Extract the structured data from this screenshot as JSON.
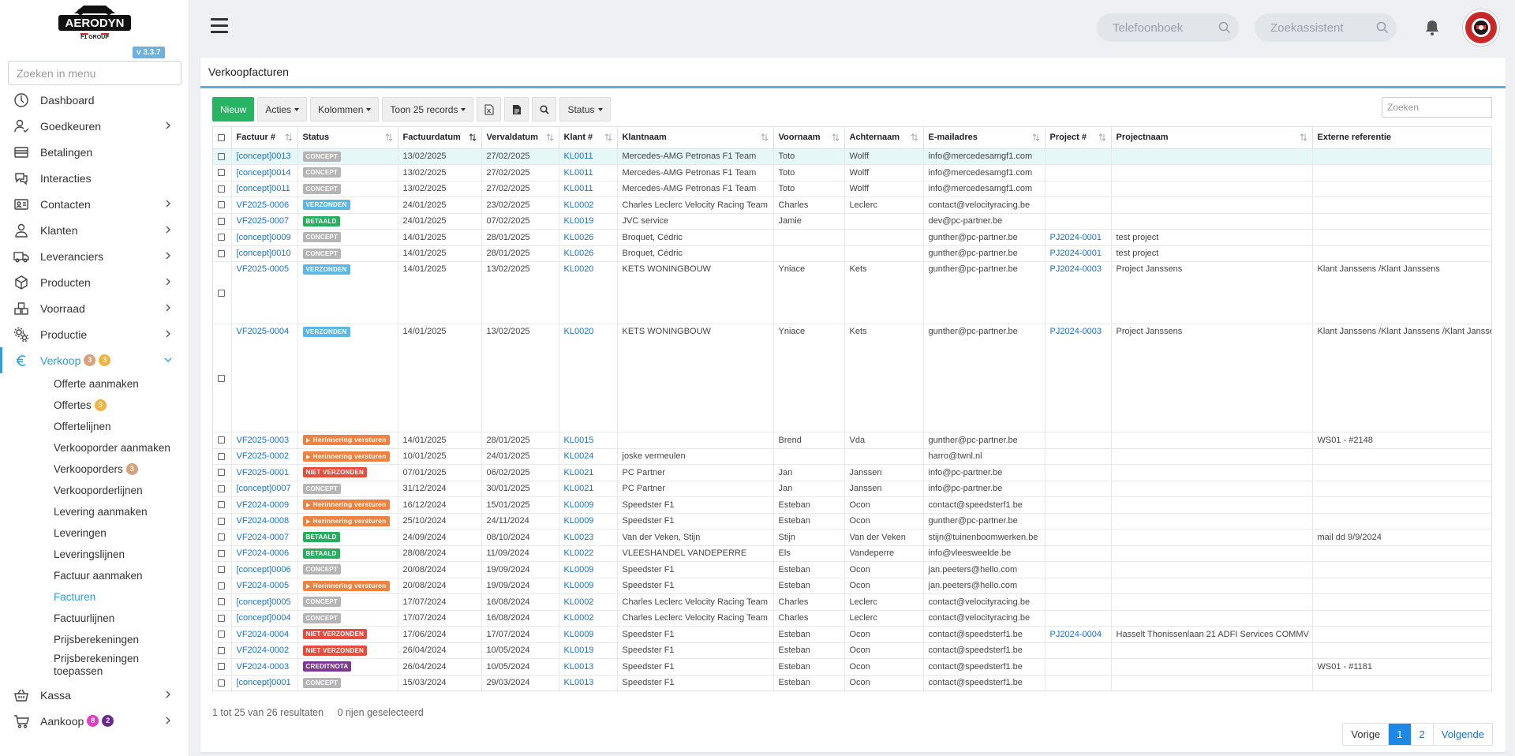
{
  "app": {
    "logo_text": "AERODYN",
    "logo_sub": "F1 GROUP",
    "version": "v 3.3.7"
  },
  "sidebar": {
    "search_placeholder": "Zoeken in menu",
    "items": [
      {
        "label": "Dashboard",
        "icon": "dashboard-icon",
        "has_chevron": false
      },
      {
        "label": "Goedkeuren",
        "icon": "user-check-icon",
        "has_chevron": true
      },
      {
        "label": "Betalingen",
        "icon": "credit-card-icon",
        "has_chevron": false
      },
      {
        "label": "Interacties",
        "icon": "chat-icon",
        "has_chevron": false
      },
      {
        "label": "Contacten",
        "icon": "contact-card-icon",
        "has_chevron": true
      },
      {
        "label": "Klanten",
        "icon": "person-icon",
        "has_chevron": true
      },
      {
        "label": "Leveranciers",
        "icon": "truck-icon",
        "has_chevron": true
      },
      {
        "label": "Producten",
        "icon": "box-icon",
        "has_chevron": true
      },
      {
        "label": "Voorraad",
        "icon": "boxes-icon",
        "has_chevron": true
      },
      {
        "label": "Productie",
        "icon": "gears-icon",
        "has_chevron": true
      }
    ],
    "verkoop": {
      "label": "Verkoop",
      "icon": "euro-icon",
      "badge1": "3",
      "badge2": "3",
      "subitems": [
        {
          "label": "Offerte aanmaken"
        },
        {
          "label": "Offertes",
          "badge": "3"
        },
        {
          "label": "Offertelijnen"
        },
        {
          "label": "Verkooporder aanmaken"
        },
        {
          "label": "Verkooporders",
          "badge": "3"
        },
        {
          "label": "Verkooporderlijnen"
        },
        {
          "label": "Levering aanmaken"
        },
        {
          "label": "Leveringen"
        },
        {
          "label": "Leveringslijnen"
        },
        {
          "label": "Factuur aanmaken"
        },
        {
          "label": "Facturen"
        },
        {
          "label": "Factuurlijnen"
        },
        {
          "label": "Prijsberekeningen"
        },
        {
          "label": "Prijsberekeningen toepassen"
        }
      ]
    },
    "kassa": {
      "label": "Kassa",
      "icon": "basket-icon"
    },
    "aankoop": {
      "label": "Aankoop",
      "icon": "cart-icon",
      "badge1": "8",
      "badge2": "2"
    }
  },
  "header": {
    "phonebook_placeholder": "Telefoonboek",
    "assistant_placeholder": "Zoekassistent"
  },
  "page": {
    "title": "Verkoopfacturen",
    "toolbar": {
      "new": "Nieuw",
      "actions": "Acties",
      "columns": "Kolommen",
      "show": "Toon 25 records",
      "status": "Status"
    },
    "search_placeholder": "Zoeken",
    "columns": [
      "Factuur #",
      "Status",
      "Factuurdatum",
      "Vervaldatum",
      "Klant #",
      "Klantnaam",
      "Voornaam",
      "Achternaam",
      "E-mailadres",
      "Project #",
      "Projectnaam",
      "Externe referentie"
    ],
    "rows": [
      {
        "nr": "[concept]0013",
        "status": "CONCEPT",
        "st": "concept",
        "fdate": "13/02/2025",
        "vdate": "27/02/2025",
        "klant": "KL0011",
        "naam": "Mercedes-AMG Petronas F1 Team",
        "vn": "Toto",
        "an": "Wolff",
        "email": "info@mercedesamgf1.com",
        "proj": "",
        "projnaam": "",
        "ref": "",
        "hl": true
      },
      {
        "nr": "[concept]0014",
        "status": "CONCEPT",
        "st": "concept",
        "fdate": "13/02/2025",
        "vdate": "27/02/2025",
        "klant": "KL0011",
        "naam": "Mercedes-AMG Petronas F1 Team",
        "vn": "Toto",
        "an": "Wolff",
        "email": "info@mercedesamgf1.com",
        "proj": "",
        "projnaam": "",
        "ref": ""
      },
      {
        "nr": "[concept]0011",
        "status": "CONCEPT",
        "st": "concept",
        "fdate": "13/02/2025",
        "vdate": "27/02/2025",
        "klant": "KL0011",
        "naam": "Mercedes-AMG Petronas F1 Team",
        "vn": "Toto",
        "an": "Wolff",
        "email": "info@mercedesamgf1.com",
        "proj": "",
        "projnaam": "",
        "ref": ""
      },
      {
        "nr": "VF2025-0006",
        "status": "VERZONDEN",
        "st": "verzonden",
        "fdate": "24/01/2025",
        "vdate": "23/02/2025",
        "klant": "KL0002",
        "naam": "Charles Leclerc Velocity Racing Team",
        "vn": "Charles",
        "an": "Leclerc",
        "email": "contact@velocityracing.be",
        "proj": "",
        "projnaam": "",
        "ref": ""
      },
      {
        "nr": "VF2025-0007",
        "status": "BETAALD",
        "st": "betaald",
        "fdate": "24/01/2025",
        "vdate": "07/02/2025",
        "klant": "KL0019",
        "naam": "JVC service",
        "vn": "Jamie",
        "an": "",
        "email": "dev@pc-partner.be",
        "proj": "",
        "projnaam": "",
        "ref": ""
      },
      {
        "nr": "[concept]0009",
        "status": "CONCEPT",
        "st": "concept",
        "fdate": "14/01/2025",
        "vdate": "28/01/2025",
        "klant": "KL0026",
        "naam": "Broquet, Cédric",
        "vn": "",
        "an": "",
        "email": "gunther@pc-partner.be",
        "proj": "PJ2024-0001",
        "projnaam": "test project",
        "ref": ""
      },
      {
        "nr": "[concept]0010",
        "status": "CONCEPT",
        "st": "concept",
        "fdate": "14/01/2025",
        "vdate": "28/01/2025",
        "klant": "KL0026",
        "naam": "Broquet, Cédric",
        "vn": "",
        "an": "",
        "email": "gunther@pc-partner.be",
        "proj": "PJ2024-0001",
        "projnaam": "test project",
        "ref": ""
      },
      {
        "nr": "VF2025-0005",
        "status": "VERZONDEN",
        "st": "verzonden",
        "fdate": "14/01/2025",
        "vdate": "13/02/2025",
        "klant": "KL0020",
        "naam": "KETS WONINGBOUW",
        "vn": "Yniace",
        "an": "Kets",
        "email": "gunther@pc-partner.be",
        "proj": "PJ2024-0003",
        "projnaam": "Project Janssens",
        "ref": "Klant Janssens /Klant Janssens",
        "tall": 79
      },
      {
        "nr": "VF2025-0004",
        "status": "VERZONDEN",
        "st": "verzonden",
        "fdate": "14/01/2025",
        "vdate": "13/02/2025",
        "klant": "KL0020",
        "naam": "KETS WONINGBOUW",
        "vn": "Yniace",
        "an": "Kets",
        "email": "gunther@pc-partner.be",
        "proj": "PJ2024-0003",
        "projnaam": "Project Janssens",
        "ref": "Klant Janssens /Klant Janssens /Klant Janssens",
        "tall": 137
      },
      {
        "nr": "VF2025-0003",
        "status": "Herinnering versturen",
        "st": "herinnering",
        "fdate": "14/01/2025",
        "vdate": "28/01/2025",
        "klant": "KL0015",
        "naam": "",
        "vn": "Brend",
        "an": "Vda",
        "email": "gunther@pc-partner.be",
        "proj": "",
        "projnaam": "",
        "ref": "WS01 - #2148"
      },
      {
        "nr": "VF2025-0002",
        "status": "Herinnering versturen",
        "st": "herinnering",
        "fdate": "10/01/2025",
        "vdate": "24/01/2025",
        "klant": "KL0024",
        "naam": "joske vermeulen",
        "vn": "",
        "an": "",
        "email": "harro@twnl.nl",
        "proj": "",
        "projnaam": "",
        "ref": ""
      },
      {
        "nr": "VF2025-0001",
        "status": "NIET VERZONDEN",
        "st": "niet",
        "fdate": "07/01/2025",
        "vdate": "06/02/2025",
        "klant": "KL0021",
        "naam": "PC Partner",
        "vn": "Jan",
        "an": "Janssen",
        "email": "info@pc-partner.be",
        "proj": "",
        "projnaam": "",
        "ref": ""
      },
      {
        "nr": "[concept]0007",
        "status": "CONCEPT",
        "st": "concept",
        "fdate": "31/12/2024",
        "vdate": "30/01/2025",
        "klant": "KL0021",
        "naam": "PC Partner",
        "vn": "Jan",
        "an": "Janssen",
        "email": "info@pc-partner.be",
        "proj": "",
        "projnaam": "",
        "ref": ""
      },
      {
        "nr": "VF2024-0009",
        "status": "Herinnering versturen",
        "st": "herinnering",
        "fdate": "16/12/2024",
        "vdate": "15/01/2025",
        "klant": "KL0009",
        "naam": "Speedster F1",
        "vn": "Esteban",
        "an": "Ocon",
        "email": "contact@speedsterf1.be",
        "proj": "",
        "projnaam": "",
        "ref": ""
      },
      {
        "nr": "VF2024-0008",
        "status": "Herinnering versturen",
        "st": "herinnering",
        "fdate": "25/10/2024",
        "vdate": "24/11/2024",
        "klant": "KL0009",
        "naam": "Speedster F1",
        "vn": "Esteban",
        "an": "Ocon",
        "email": "gunther@pc-partner.be",
        "proj": "",
        "projnaam": "",
        "ref": ""
      },
      {
        "nr": "VF2024-0007",
        "status": "BETAALD",
        "st": "betaald",
        "fdate": "24/09/2024",
        "vdate": "08/10/2024",
        "klant": "KL0023",
        "naam": "Van der Veken, Stijn",
        "vn": "Stijn",
        "an": "Van der Veken",
        "email": "stijn@tuinenboomwerken.be",
        "proj": "",
        "projnaam": "",
        "ref": "mail dd 9/9/2024"
      },
      {
        "nr": "VF2024-0006",
        "status": "BETAALD",
        "st": "betaald",
        "fdate": "28/08/2024",
        "vdate": "11/09/2024",
        "klant": "KL0022",
        "naam": "VLEESHANDEL VANDEPERRE",
        "vn": "Els",
        "an": "Vandeperre",
        "email": "info@vleesweelde.be",
        "proj": "",
        "projnaam": "",
        "ref": ""
      },
      {
        "nr": "[concept]0006",
        "status": "CONCEPT",
        "st": "concept",
        "fdate": "20/08/2024",
        "vdate": "19/09/2024",
        "klant": "KL0009",
        "naam": "Speedster F1",
        "vn": "Esteban",
        "an": "Ocon",
        "email": "jan.peeters@hello.com",
        "proj": "",
        "projnaam": "",
        "ref": ""
      },
      {
        "nr": "VF2024-0005",
        "status": "Herinnering versturen",
        "st": "herinnering",
        "fdate": "20/08/2024",
        "vdate": "19/09/2024",
        "klant": "KL0009",
        "naam": "Speedster F1",
        "vn": "Esteban",
        "an": "Ocon",
        "email": "jan.peeters@hello.com",
        "proj": "",
        "projnaam": "",
        "ref": ""
      },
      {
        "nr": "[concept]0005",
        "status": "CONCEPT",
        "st": "concept",
        "fdate": "17/07/2024",
        "vdate": "16/08/2024",
        "klant": "KL0002",
        "naam": "Charles Leclerc Velocity Racing Team",
        "vn": "Charles",
        "an": "Leclerc",
        "email": "contact@velocityracing.be",
        "proj": "",
        "projnaam": "",
        "ref": ""
      },
      {
        "nr": "[concept]0004",
        "status": "CONCEPT",
        "st": "concept",
        "fdate": "17/07/2024",
        "vdate": "16/08/2024",
        "klant": "KL0002",
        "naam": "Charles Leclerc Velocity Racing Team",
        "vn": "Charles",
        "an": "Leclerc",
        "email": "contact@velocityracing.be",
        "proj": "",
        "projnaam": "",
        "ref": ""
      },
      {
        "nr": "VF2024-0004",
        "status": "NIET VERZONDEN",
        "st": "niet",
        "fdate": "17/06/2024",
        "vdate": "17/07/2024",
        "klant": "KL0009",
        "naam": "Speedster F1",
        "vn": "Esteban",
        "an": "Ocon",
        "email": "contact@speedsterf1.be",
        "proj": "PJ2024-0004",
        "projnaam": "Hasselt Thonissenlaan 21 ADFI Services COMMV",
        "ref": ""
      },
      {
        "nr": "VF2024-0002",
        "status": "NIET VERZONDEN",
        "st": "niet",
        "fdate": "26/04/2024",
        "vdate": "10/05/2024",
        "klant": "KL0019",
        "naam": "Speedster F1",
        "vn": "Esteban",
        "an": "Ocon",
        "email": "contact@speedsterf1.be",
        "proj": "",
        "projnaam": "",
        "ref": ""
      },
      {
        "nr": "VF2024-0003",
        "status": "CREDITNOTA",
        "st": "credit",
        "fdate": "26/04/2024",
        "vdate": "10/05/2024",
        "klant": "KL0013",
        "naam": "Speedster F1",
        "vn": "Esteban",
        "an": "Ocon",
        "email": "contact@speedsterf1.be",
        "proj": "",
        "projnaam": "",
        "ref": "WS01 - #1181"
      },
      {
        "nr": "[concept]0001",
        "status": "CONCEPT",
        "st": "concept",
        "fdate": "15/03/2024",
        "vdate": "29/03/2024",
        "klant": "KL0013",
        "naam": "Speedster F1",
        "vn": "Esteban",
        "an": "Ocon",
        "email": "contact@speedsterf1.be",
        "proj": "",
        "projnaam": "",
        "ref": ""
      }
    ],
    "footer": {
      "results": "1 tot 25 van 26 resultaten",
      "selected": "0 rijen geselecteerd"
    },
    "pagination": {
      "prev": "Vorige",
      "pages": [
        "1",
        "2"
      ],
      "current": "1",
      "next": "Volgende"
    }
  }
}
